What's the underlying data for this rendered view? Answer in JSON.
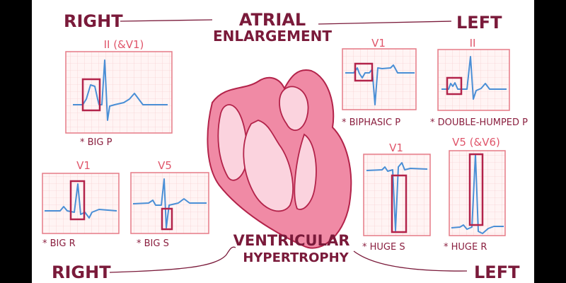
{
  "atrial": {
    "title_line1": "ATRIAL",
    "title_line2": "ENLARGEMENT",
    "right_label": "RIGHT",
    "left_label": "LEFT",
    "right_panel": {
      "lead": "II (&V1)",
      "note": "* BIG P"
    },
    "left_panels": [
      {
        "lead": "V1",
        "note": "* BIPHASIC P"
      },
      {
        "lead": "II",
        "note": "* DOUBLE-HUMPED P"
      }
    ]
  },
  "ventricular": {
    "title_line1": "VENTRICULAR",
    "title_line2": "HYPERTROPHY",
    "right_label": "RIGHT",
    "left_label": "LEFT",
    "right_panels": [
      {
        "lead": "V1",
        "note": "* BIG R"
      },
      {
        "lead": "V5",
        "note": "* BIG S"
      }
    ],
    "left_panels": [
      {
        "lead": "V1",
        "note": "* HUGE S"
      },
      {
        "lead": "V5 (&V6)",
        "note": "* HUGE R"
      }
    ]
  },
  "colors": {
    "title": "#7a1a3a",
    "lead_label": "#e0566b",
    "ecg_trace": "#4a8fd6",
    "highlight_box": "#b3234a",
    "heart_wall": "#f08aa5",
    "heart_chamber": "#fbd3de"
  }
}
